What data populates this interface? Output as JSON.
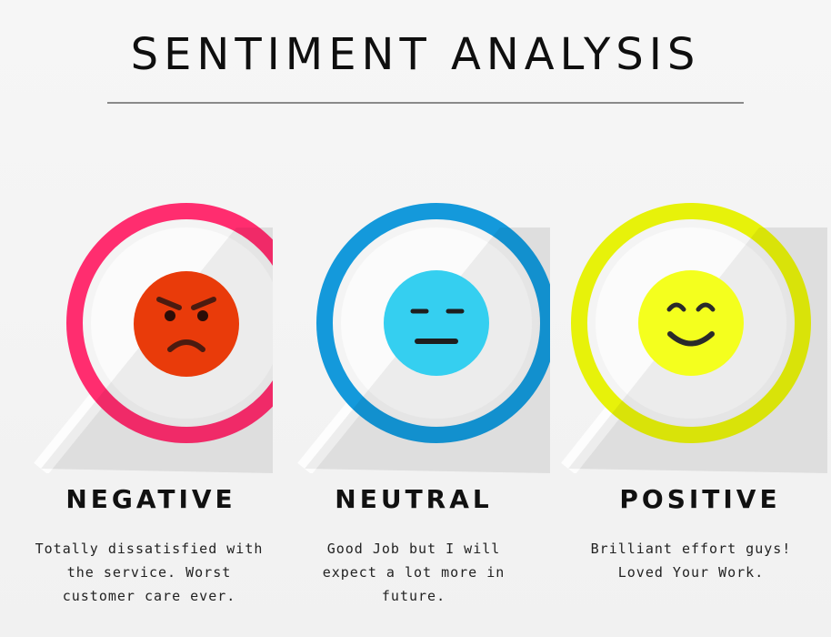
{
  "title": "SENTIMENT ANALYSIS",
  "colors": {
    "negative": "#ff2d6f",
    "neutral": "#1499db",
    "positive": "#e7f20a",
    "negative_face": "#e93b0a",
    "neutral_face": "#35cff0",
    "positive_face": "#f4ff1e"
  },
  "cards": [
    {
      "label": "NEGATIVE",
      "description": "Totally dissatisfied with the service. Worst customer care ever.",
      "icon": "angry-face-icon"
    },
    {
      "label": "NEUTRAL",
      "description": "Good Job but I will expect a lot more in future.",
      "icon": "neutral-face-icon"
    },
    {
      "label": "POSITIVE",
      "description": "Brilliant effort guys! Loved Your Work.",
      "icon": "smiling-face-icon"
    }
  ]
}
